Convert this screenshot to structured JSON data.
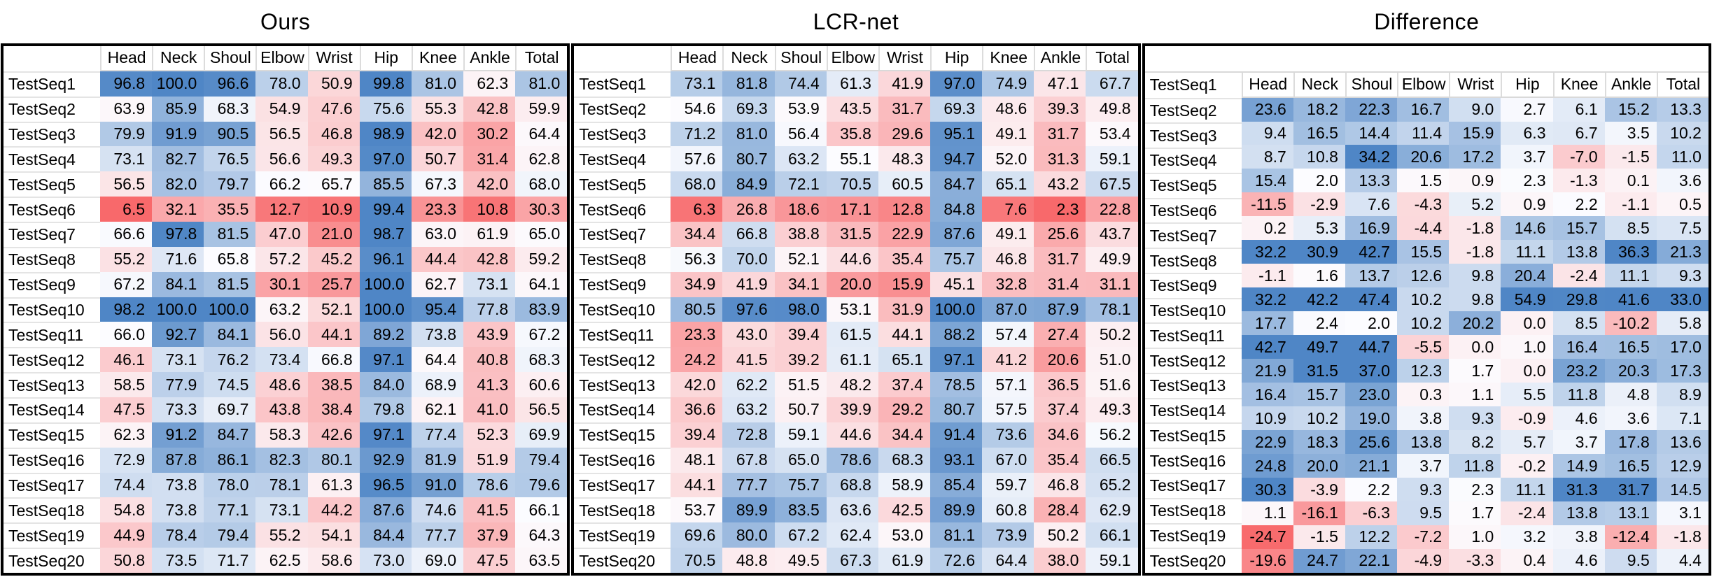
{
  "columns": [
    "Head",
    "Neck",
    "Shoul",
    "Elbow",
    "Wrist",
    "Hip",
    "Knee",
    "Ankle",
    "Total"
  ],
  "row_labels": [
    "TestSeq1",
    "TestSeq2",
    "TestSeq3",
    "TestSeq4",
    "TestSeq5",
    "TestSeq6",
    "TestSeq7",
    "TestSeq8",
    "TestSeq9",
    "TestSeq10",
    "TestSeq11",
    "TestSeq12",
    "TestSeq13",
    "TestSeq14",
    "TestSeq15",
    "TestSeq16",
    "TestSeq17",
    "TestSeq18",
    "TestSeq19",
    "TestSeq20"
  ],
  "colors": {
    "negative_end": "#F8696B",
    "midpoint": "#FCFCFF",
    "positive_end": "#4F86C6",
    "table_border": "#000000",
    "gridline": "#D9D9D9",
    "text": "#000000"
  },
  "chart_data": [
    {
      "type": "heatmap",
      "title": "Ours",
      "corner_label": "",
      "x_labels": [
        "Head",
        "Neck",
        "Shoul",
        "Elbow",
        "Wrist",
        "Hip",
        "Knee",
        "Ankle",
        "Total"
      ],
      "y_labels": [
        "TestSeq1",
        "TestSeq2",
        "TestSeq3",
        "TestSeq4",
        "TestSeq5",
        "TestSeq6",
        "TestSeq7",
        "TestSeq8",
        "TestSeq9",
        "TestSeq10",
        "TestSeq11",
        "TestSeq12",
        "TestSeq13",
        "TestSeq14",
        "TestSeq15",
        "TestSeq16",
        "TestSeq17",
        "TestSeq18",
        "TestSeq19",
        "TestSeq20"
      ],
      "values": [
        [
          96.8,
          100.0,
          96.6,
          78.0,
          50.9,
          99.8,
          81.0,
          62.3,
          81.0
        ],
        [
          63.9,
          85.9,
          68.3,
          54.9,
          47.6,
          75.6,
          55.3,
          42.8,
          59.9
        ],
        [
          79.9,
          91.9,
          90.5,
          56.5,
          46.8,
          98.9,
          42.0,
          30.2,
          64.4
        ],
        [
          73.1,
          82.7,
          76.5,
          56.6,
          49.3,
          97.0,
          50.7,
          31.4,
          62.8
        ],
        [
          56.5,
          82.0,
          79.7,
          66.2,
          65.7,
          85.5,
          67.3,
          42.0,
          68.0
        ],
        [
          6.5,
          32.1,
          35.5,
          12.7,
          10.9,
          99.4,
          23.3,
          10.8,
          30.3
        ],
        [
          66.6,
          97.8,
          81.5,
          47.0,
          21.0,
          98.7,
          63.0,
          61.9,
          65.0
        ],
        [
          55.2,
          71.6,
          65.8,
          57.2,
          45.2,
          96.1,
          44.4,
          42.8,
          59.2
        ],
        [
          67.2,
          84.1,
          81.5,
          30.1,
          25.7,
          100.0,
          62.7,
          73.1,
          64.1
        ],
        [
          98.2,
          100.0,
          100.0,
          63.2,
          52.1,
          100.0,
          95.4,
          77.8,
          83.9
        ],
        [
          66.0,
          92.7,
          84.1,
          56.0,
          44.1,
          89.2,
          73.8,
          43.9,
          67.2
        ],
        [
          46.1,
          73.1,
          76.2,
          73.4,
          66.8,
          97.1,
          64.4,
          40.8,
          68.3
        ],
        [
          58.5,
          77.9,
          74.5,
          48.6,
          38.5,
          84.0,
          68.9,
          41.3,
          60.6
        ],
        [
          47.5,
          73.3,
          69.7,
          43.8,
          38.4,
          79.8,
          62.1,
          41.0,
          56.5
        ],
        [
          62.3,
          91.2,
          84.7,
          58.3,
          42.6,
          97.1,
          77.4,
          52.3,
          69.9
        ],
        [
          72.9,
          87.8,
          86.1,
          82.3,
          80.1,
          92.9,
          81.9,
          51.9,
          79.4
        ],
        [
          74.4,
          73.8,
          78.0,
          78.1,
          61.3,
          96.5,
          91.0,
          78.6,
          79.6
        ],
        [
          54.8,
          73.8,
          77.1,
          73.1,
          44.2,
          87.6,
          74.6,
          41.5,
          66.1
        ],
        [
          44.9,
          78.4,
          79.4,
          55.2,
          54.1,
          84.4,
          77.7,
          37.9,
          64.3
        ],
        [
          50.8,
          73.5,
          71.7,
          62.5,
          58.6,
          73.0,
          69.0,
          47.5,
          63.5
        ]
      ],
      "colormap": {
        "min": 6.5,
        "mid": 66,
        "max": 98
      }
    },
    {
      "type": "heatmap",
      "title": "LCR-net",
      "corner_label": "",
      "x_labels": [
        "Head",
        "Neck",
        "Shoul",
        "Elbow",
        "Wrist",
        "Hip",
        "Knee",
        "Ankle",
        "Total"
      ],
      "y_labels": [
        "TestSeq1",
        "TestSeq2",
        "TestSeq3",
        "TestSeq4",
        "TestSeq5",
        "TestSeq6",
        "TestSeq7",
        "TestSeq8",
        "TestSeq9",
        "TestSeq10",
        "TestSeq11",
        "TestSeq12",
        "TestSeq13",
        "TestSeq14",
        "TestSeq15",
        "TestSeq16",
        "TestSeq17",
        "TestSeq18",
        "TestSeq19",
        "TestSeq20"
      ],
      "values": [
        [
          73.1,
          81.8,
          74.4,
          61.3,
          41.9,
          97.0,
          74.9,
          47.1,
          67.7
        ],
        [
          54.6,
          69.3,
          53.9,
          43.5,
          31.7,
          69.3,
          48.6,
          39.3,
          49.8
        ],
        [
          71.2,
          81.0,
          56.4,
          35.8,
          29.6,
          95.1,
          49.1,
          31.7,
          53.4
        ],
        [
          57.6,
          80.7,
          63.2,
          55.1,
          48.3,
          94.7,
          52.0,
          31.3,
          59.1
        ],
        [
          68.0,
          84.9,
          72.1,
          70.5,
          60.5,
          84.7,
          65.1,
          43.2,
          67.5
        ],
        [
          6.3,
          26.8,
          18.6,
          17.1,
          12.8,
          84.8,
          7.6,
          2.3,
          22.8
        ],
        [
          34.4,
          66.8,
          38.8,
          31.5,
          22.9,
          87.6,
          49.1,
          25.6,
          43.7
        ],
        [
          56.3,
          70.0,
          52.1,
          44.6,
          35.4,
          75.7,
          46.8,
          31.7,
          49.9
        ],
        [
          34.9,
          41.9,
          34.1,
          20.0,
          15.9,
          45.1,
          32.8,
          31.4,
          31.1
        ],
        [
          80.5,
          97.6,
          98.0,
          53.1,
          31.9,
          100.0,
          87.0,
          87.9,
          78.1
        ],
        [
          23.3,
          43.0,
          39.4,
          61.5,
          44.1,
          88.2,
          57.4,
          27.4,
          50.2
        ],
        [
          24.2,
          41.5,
          39.2,
          61.1,
          65.1,
          97.1,
          41.2,
          20.6,
          51.0
        ],
        [
          42.0,
          62.2,
          51.5,
          48.2,
          37.4,
          78.5,
          57.1,
          36.5,
          51.6
        ],
        [
          36.6,
          63.2,
          50.7,
          39.9,
          29.2,
          80.7,
          57.5,
          37.4,
          49.3
        ],
        [
          39.4,
          72.8,
          59.1,
          44.6,
          34.4,
          91.4,
          73.6,
          34.6,
          56.2
        ],
        [
          48.1,
          67.8,
          65.0,
          78.6,
          68.3,
          93.1,
          67.0,
          35.4,
          66.5
        ],
        [
          44.1,
          77.7,
          75.7,
          68.8,
          58.9,
          85.4,
          59.7,
          46.8,
          65.2
        ],
        [
          53.7,
          89.9,
          83.5,
          63.6,
          42.5,
          89.9,
          60.8,
          28.4,
          62.9
        ],
        [
          69.6,
          80.0,
          67.2,
          62.4,
          53.0,
          81.1,
          73.9,
          50.2,
          66.1
        ],
        [
          70.5,
          48.8,
          49.5,
          67.3,
          61.9,
          72.6,
          64.4,
          38.0,
          59.1
        ]
      ],
      "colormap": {
        "min": 2.3,
        "mid": 55,
        "max": 100
      }
    },
    {
      "type": "heatmap",
      "title": "Difference",
      "corner_label": "TestSeq1",
      "layout": "labels_offset_by_one_row",
      "x_labels": [
        "Head",
        "Neck",
        "Shoul",
        "Elbow",
        "Wrist",
        "Hip",
        "Knee",
        "Ankle",
        "Total"
      ],
      "y_labels": [
        "TestSeq1",
        "TestSeq2",
        "TestSeq3",
        "TestSeq4",
        "TestSeq5",
        "TestSeq6",
        "TestSeq7",
        "TestSeq8",
        "TestSeq9",
        "TestSeq10",
        "TestSeq11",
        "TestSeq12",
        "TestSeq13",
        "TestSeq14",
        "TestSeq15",
        "TestSeq16",
        "TestSeq17",
        "TestSeq18",
        "TestSeq19",
        "TestSeq20"
      ],
      "values": [
        [
          23.6,
          18.2,
          22.3,
          16.7,
          9.0,
          2.7,
          6.1,
          15.2,
          13.3
        ],
        [
          9.4,
          16.5,
          14.4,
          11.4,
          15.9,
          6.3,
          6.7,
          3.5,
          10.2
        ],
        [
          8.7,
          10.8,
          34.2,
          20.6,
          17.2,
          3.7,
          -7.0,
          -1.5,
          11.0
        ],
        [
          15.4,
          2.0,
          13.3,
          1.5,
          0.9,
          2.3,
          -1.3,
          0.1,
          3.6
        ],
        [
          -11.5,
          -2.9,
          7.6,
          -4.3,
          5.2,
          0.9,
          2.2,
          -1.1,
          0.5
        ],
        [
          0.2,
          5.3,
          16.9,
          -4.4,
          -1.8,
          14.6,
          15.7,
          8.5,
          7.5
        ],
        [
          32.2,
          30.9,
          42.7,
          15.5,
          -1.8,
          11.1,
          13.8,
          36.3,
          21.3
        ],
        [
          -1.1,
          1.6,
          13.7,
          12.6,
          9.8,
          20.4,
          -2.4,
          11.1,
          9.3
        ],
        [
          32.2,
          42.2,
          47.4,
          10.2,
          9.8,
          54.9,
          29.8,
          41.6,
          33.0
        ],
        [
          17.7,
          2.4,
          2.0,
          10.2,
          20.2,
          0.0,
          8.5,
          -10.2,
          5.8
        ],
        [
          42.7,
          49.7,
          44.7,
          -5.5,
          0.0,
          1.0,
          16.4,
          16.5,
          17.0
        ],
        [
          21.9,
          31.5,
          37.0,
          12.3,
          1.7,
          0.0,
          23.2,
          20.3,
          17.3
        ],
        [
          16.4,
          15.7,
          23.0,
          0.3,
          1.1,
          5.5,
          11.8,
          4.8,
          8.9
        ],
        [
          10.9,
          10.2,
          19.0,
          3.8,
          9.3,
          -0.9,
          4.6,
          3.6,
          7.1
        ],
        [
          22.9,
          18.3,
          25.6,
          13.8,
          8.2,
          5.7,
          3.7,
          17.8,
          13.6
        ],
        [
          24.8,
          20.0,
          21.1,
          3.7,
          11.8,
          -0.2,
          14.9,
          16.5,
          12.9
        ],
        [
          30.3,
          -3.9,
          2.2,
          9.3,
          2.3,
          11.1,
          31.3,
          31.7,
          14.5
        ],
        [
          1.1,
          -16.1,
          -6.3,
          9.5,
          1.7,
          -2.4,
          13.8,
          13.1,
          3.1
        ],
        [
          -24.7,
          -1.5,
          12.2,
          -7.2,
          1.0,
          3.2,
          3.8,
          -12.4,
          -1.8
        ],
        [
          -19.6,
          24.7,
          22.1,
          -4.9,
          -3.3,
          0.4,
          4.6,
          9.5,
          4.4
        ]
      ],
      "colormap": {
        "min": -25,
        "mid": 2,
        "max": 30
      }
    }
  ]
}
